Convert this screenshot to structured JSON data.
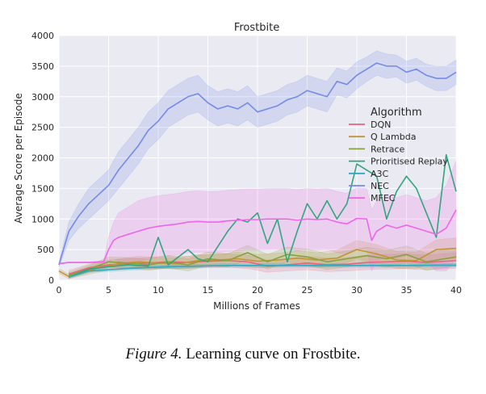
{
  "chart_data": {
    "type": "line",
    "title": "Frostbite",
    "xlabel": "Millions of Frames",
    "ylabel": "Average Score per Episode",
    "xlim": [
      0,
      40
    ],
    "ylim": [
      0,
      4000
    ],
    "xticks": [
      0,
      5,
      10,
      15,
      20,
      25,
      30,
      35,
      40
    ],
    "yticks": [
      0,
      500,
      1000,
      1500,
      2000,
      2500,
      3000,
      3500,
      4000
    ],
    "grid": true,
    "background": "#eaeaf2",
    "legend": {
      "title": "Algorithm",
      "placement": "right"
    },
    "series": [
      {
        "name": "DQN",
        "color": "#e8637c",
        "x": [
          1,
          3,
          5,
          7,
          9,
          11,
          13,
          15,
          17,
          19,
          21,
          23,
          25,
          27,
          29,
          31,
          33,
          35,
          37,
          40
        ],
        "y": [
          100,
          200,
          250,
          270,
          280,
          300,
          290,
          310,
          320,
          300,
          230,
          250,
          280,
          250,
          260,
          290,
          300,
          310,
          290,
          320
        ],
        "band": [
          60,
          60,
          80,
          80,
          90,
          100,
          100,
          100,
          110,
          110,
          100,
          100,
          110,
          110,
          110,
          120,
          120,
          120,
          120,
          130
        ]
      },
      {
        "name": "Q Lambda",
        "color": "#c39434",
        "x": [
          0,
          1,
          2,
          4,
          6,
          8,
          10,
          12,
          14,
          16,
          18,
          20,
          22,
          24,
          26,
          28,
          30,
          32,
          34,
          36,
          38,
          40
        ],
        "y": [
          150,
          60,
          110,
          200,
          270,
          300,
          280,
          270,
          320,
          330,
          350,
          310,
          330,
          360,
          330,
          360,
          500,
          430,
          330,
          320,
          500,
          520
        ],
        "band": [
          40,
          40,
          50,
          70,
          80,
          90,
          90,
          90,
          100,
          100,
          110,
          110,
          110,
          120,
          120,
          130,
          150,
          150,
          140,
          140,
          160,
          170
        ]
      },
      {
        "name": "Retrace",
        "color": "#87a33b",
        "x": [
          1,
          3,
          5,
          7,
          9,
          11,
          13,
          15,
          17,
          19,
          21,
          23,
          25,
          27,
          29,
          31,
          33,
          35,
          37,
          40
        ],
        "y": [
          80,
          180,
          300,
          280,
          250,
          300,
          250,
          350,
          320,
          450,
          300,
          420,
          380,
          300,
          350,
          400,
          350,
          420,
          300,
          380
        ],
        "band": [
          50,
          60,
          80,
          90,
          90,
          100,
          100,
          110,
          110,
          120,
          120,
          120,
          130,
          130,
          130,
          140,
          140,
          140,
          140,
          150
        ]
      },
      {
        "name": "Prioritised Replay",
        "color": "#31a57d",
        "x": [
          1,
          3,
          5,
          7,
          9,
          10,
          11,
          13,
          14,
          15,
          17,
          18,
          19,
          20,
          21,
          22,
          23,
          24,
          25,
          26,
          27,
          28,
          29,
          30,
          31,
          32,
          33,
          34,
          35,
          36,
          37,
          38,
          39,
          40
        ],
        "y": [
          50,
          180,
          220,
          250,
          230,
          700,
          250,
          500,
          350,
          300,
          800,
          1000,
          950,
          1100,
          600,
          1000,
          300,
          800,
          1250,
          1000,
          1300,
          1000,
          1250,
          1900,
          1800,
          1700,
          1000,
          1450,
          1700,
          1500,
          1100,
          700,
          2050,
          1450
        ],
        "band": [
          0,
          0,
          0,
          0,
          0,
          0,
          0,
          0,
          0,
          0,
          0,
          0,
          0,
          0,
          0,
          0,
          0,
          0,
          0,
          0,
          0,
          0,
          0,
          0,
          0,
          0,
          0,
          0,
          0,
          0,
          0,
          0,
          0,
          0
        ]
      },
      {
        "name": "A3C",
        "color": "#35a6bd",
        "x": [
          1,
          3,
          5,
          8,
          11,
          14,
          17,
          20,
          23,
          26,
          29,
          32,
          35,
          38,
          40
        ],
        "y": [
          50,
          150,
          170,
          200,
          220,
          230,
          240,
          240,
          240,
          240,
          240,
          240,
          240,
          245,
          245
        ],
        "band": [
          20,
          20,
          30,
          30,
          30,
          30,
          30,
          30,
          30,
          30,
          30,
          30,
          30,
          30,
          30
        ]
      },
      {
        "name": "NEC",
        "color": "#748ae8",
        "x": [
          0,
          1,
          2,
          3,
          4,
          5,
          6,
          7,
          8,
          9,
          10,
          11,
          12,
          13,
          14,
          15,
          16,
          17,
          18,
          19,
          20,
          21,
          22,
          23,
          24,
          25,
          26,
          27,
          28,
          29,
          30,
          31,
          32,
          33,
          34,
          35,
          36,
          37,
          38,
          39,
          40
        ],
        "y": [
          250,
          800,
          1050,
          1250,
          1400,
          1550,
          1800,
          2000,
          2200,
          2450,
          2600,
          2800,
          2900,
          3000,
          3050,
          2900,
          2800,
          2850,
          2800,
          2900,
          2750,
          2800,
          2850,
          2950,
          3000,
          3100,
          3050,
          3000,
          3250,
          3200,
          3350,
          3450,
          3550,
          3500,
          3500,
          3400,
          3450,
          3350,
          3300,
          3300,
          3400
        ],
        "band": [
          40,
          150,
          200,
          250,
          250,
          250,
          300,
          300,
          300,
          300,
          300,
          300,
          300,
          300,
          300,
          280,
          280,
          280,
          280,
          280,
          250,
          250,
          250,
          250,
          250,
          250,
          250,
          250,
          220,
          220,
          220,
          200,
          200,
          200,
          180,
          180,
          180,
          180,
          200,
          200,
          200
        ]
      },
      {
        "name": "MFEC",
        "color": "#f065e6",
        "x": [
          0,
          1,
          3,
          4.5,
          5,
          5.5,
          6,
          7,
          8,
          9,
          10,
          11,
          12,
          13,
          14,
          15,
          16,
          17,
          18,
          19,
          20,
          21,
          22,
          23,
          24,
          25,
          26,
          27,
          28,
          29,
          30,
          31,
          31.5,
          32,
          33,
          34,
          35,
          36,
          37,
          38,
          39,
          40
        ],
        "y": [
          270,
          290,
          290,
          300,
          500,
          650,
          700,
          750,
          800,
          850,
          880,
          900,
          920,
          950,
          960,
          950,
          950,
          970,
          980,
          990,
          990,
          1000,
          1000,
          1000,
          980,
          1000,
          990,
          1000,
          950,
          920,
          1010,
          1000,
          650,
          800,
          900,
          850,
          900,
          850,
          800,
          750,
          850,
          1150
        ],
        "band": [
          10,
          10,
          10,
          20,
          200,
          300,
          400,
          450,
          500,
          500,
          500,
          500,
          500,
          500,
          500,
          500,
          500,
          500,
          500,
          500,
          500,
          500,
          500,
          500,
          500,
          500,
          500,
          500,
          500,
          500,
          500,
          500,
          500,
          500,
          500,
          500,
          500,
          500,
          500,
          600,
          700,
          800
        ]
      }
    ]
  },
  "caption": {
    "figure": "Figure 4.",
    "text": "Learning curve on Frostbite."
  }
}
